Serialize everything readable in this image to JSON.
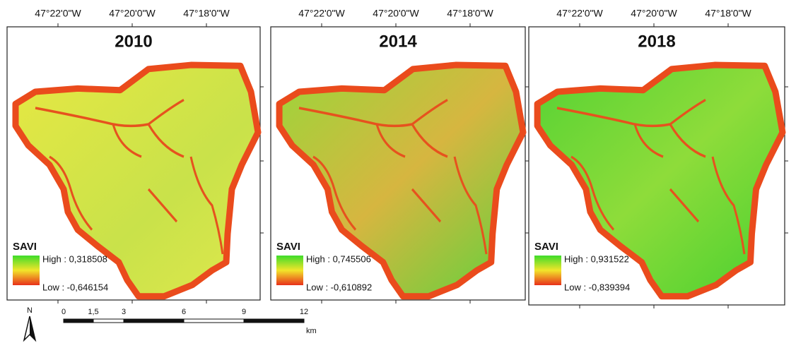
{
  "panels": [
    {
      "title": "2010",
      "coords": [
        "47°22'0\"W",
        "47°20'0\"W",
        "47°18'0\"W"
      ],
      "legend": {
        "title": "SAVI",
        "high": "High : 0,318508",
        "low": "Low : -0,646154"
      }
    },
    {
      "title": "2014",
      "coords": [
        "47°22'0\"W",
        "47°20'0\"W",
        "47°18'0\"W"
      ],
      "legend": {
        "title": "SAVI",
        "high": "High : 0,745506",
        "low": "Low : -0,610892"
      }
    },
    {
      "title": "2018",
      "coords": [
        "47°22'0\"W",
        "47°20'0\"W",
        "47°18'0\"W"
      ],
      "legend": {
        "title": "SAVI",
        "high": "High : 0,931522",
        "low": "Low : -0,839394"
      }
    }
  ],
  "scale_bar": {
    "labels": [
      "0",
      "1,5",
      "3",
      "6",
      "9",
      "12"
    ],
    "unit": "km"
  },
  "north": "N"
}
